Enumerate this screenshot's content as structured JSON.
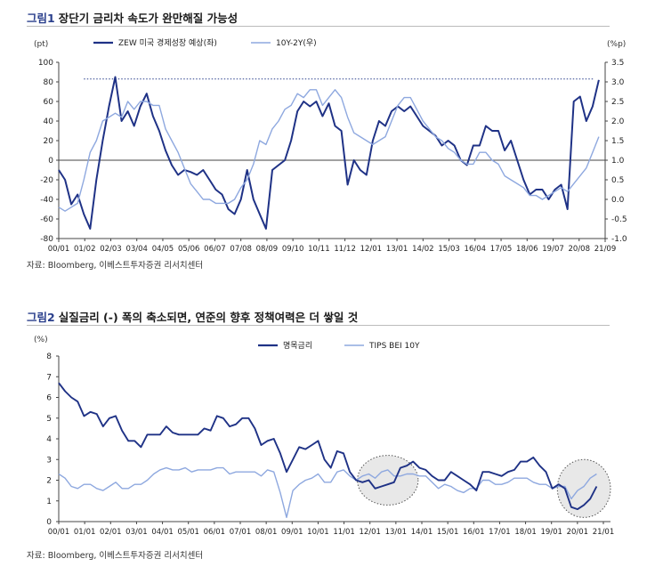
{
  "figure1": {
    "tag": "그림1",
    "title": "장단기 금리차 속도가 완만해질 가능성",
    "source": "자료: Bloomberg, 이베스트투자증권 리서치센터"
  },
  "figure2": {
    "tag": "그림2",
    "title": "실질금리 (-) 폭의 축소되면, 연준의 향후 정책여력은 더 쌓일 것",
    "source": "자료: Bloomberg, 이베스트투자증권 리서치센터"
  },
  "colors": {
    "dark": "#1f3286",
    "light": "#8ea8df",
    "ref": "#2a3f8c"
  },
  "chart_data": [
    {
      "type": "line",
      "left_unit": "(pt)",
      "right_unit": "(%p)",
      "x_ticks": [
        "00/01",
        "01/02",
        "02/03",
        "03/04",
        "04/05",
        "05/06",
        "06/07",
        "07/08",
        "08/09",
        "09/10",
        "10/11",
        "11/12",
        "12/01",
        "13/01",
        "14/02",
        "15/03",
        "16/04",
        "17/05",
        "18/06",
        "19/07",
        "20/08",
        "21/09"
      ],
      "y_left_ticks": [
        "100",
        "80",
        "60",
        "40",
        "20",
        "0",
        "-20",
        "-40",
        "-60",
        "-80"
      ],
      "y_right_ticks": [
        "3.5",
        "3.0",
        "2.5",
        "2.0",
        "1.5",
        "1.0",
        "0.5",
        "0.0",
        "-0.5",
        "-1.0"
      ],
      "ylim_left": [
        -80,
        100
      ],
      "ylim_right": [
        -1.0,
        3.5
      ],
      "x_range": [
        2000.0,
        2021.75
      ],
      "reference_line": {
        "axis": "left",
        "y": 83,
        "style": "dotted"
      },
      "legend": "top",
      "series": [
        {
          "name": "ZEW 미국 경제성장 예상(좌)",
          "axis": "left",
          "x": [
            2000.0,
            2000.25,
            2000.5,
            2000.75,
            2001.0,
            2001.25,
            2001.5,
            2001.75,
            2002.0,
            2002.25,
            2002.5,
            2002.75,
            2003.0,
            2003.25,
            2003.5,
            2003.75,
            2004.0,
            2004.25,
            2004.5,
            2004.75,
            2005.0,
            2005.25,
            2005.5,
            2005.75,
            2006.0,
            2006.25,
            2006.5,
            2006.75,
            2007.0,
            2007.25,
            2007.5,
            2007.75,
            2008.0,
            2008.25,
            2008.5,
            2008.75,
            2009.0,
            2009.25,
            2009.5,
            2009.75,
            2010.0,
            2010.25,
            2010.5,
            2010.75,
            2011.0,
            2011.25,
            2011.5,
            2011.75,
            2012.0,
            2012.25,
            2012.5,
            2012.75,
            2013.0,
            2013.25,
            2013.5,
            2013.75,
            2014.0,
            2014.25,
            2014.5,
            2014.75,
            2015.0,
            2015.25,
            2015.5,
            2015.75,
            2016.0,
            2016.25,
            2016.5,
            2016.75,
            2017.0,
            2017.25,
            2017.5,
            2017.75,
            2018.0,
            2018.25,
            2018.5,
            2018.75,
            2019.0,
            2019.25,
            2019.5,
            2019.75,
            2020.0,
            2020.25,
            2020.5,
            2020.75,
            2021.0,
            2021.25,
            2021.5
          ],
          "y": [
            -10,
            -20,
            -45,
            -35,
            -55,
            -70,
            -20,
            20,
            55,
            85,
            40,
            50,
            35,
            55,
            68,
            45,
            30,
            10,
            -5,
            -15,
            -10,
            -12,
            -15,
            -10,
            -20,
            -30,
            -35,
            -50,
            -55,
            -40,
            -10,
            -40,
            -55,
            -70,
            -10,
            -5,
            0,
            20,
            50,
            60,
            55,
            60,
            45,
            58,
            35,
            30,
            -25,
            0,
            -10,
            -15,
            20,
            40,
            35,
            50,
            55,
            50,
            55,
            45,
            35,
            30,
            25,
            15,
            20,
            15,
            0,
            -5,
            15,
            15,
            35,
            30,
            30,
            10,
            20,
            0,
            -20,
            -35,
            -30,
            -30,
            -40,
            -30,
            -25,
            -50,
            60,
            65,
            40,
            55,
            82
          ]
        },
        {
          "name": "10Y-2Y(우)",
          "axis": "right",
          "x": [
            2000.0,
            2000.25,
            2000.5,
            2000.75,
            2001.0,
            2001.25,
            2001.5,
            2001.75,
            2002.0,
            2002.25,
            2002.5,
            2002.75,
            2003.0,
            2003.25,
            2003.5,
            2003.75,
            2004.0,
            2004.25,
            2004.5,
            2004.75,
            2005.0,
            2005.25,
            2005.5,
            2005.75,
            2006.0,
            2006.25,
            2006.5,
            2006.75,
            2007.0,
            2007.25,
            2007.5,
            2007.75,
            2008.0,
            2008.25,
            2008.5,
            2008.75,
            2009.0,
            2009.25,
            2009.5,
            2009.75,
            2010.0,
            2010.25,
            2010.5,
            2010.75,
            2011.0,
            2011.25,
            2011.5,
            2011.75,
            2012.0,
            2012.25,
            2012.5,
            2012.75,
            2013.0,
            2013.25,
            2013.5,
            2013.75,
            2014.0,
            2014.25,
            2014.5,
            2014.75,
            2015.0,
            2015.25,
            2015.5,
            2015.75,
            2016.0,
            2016.25,
            2016.5,
            2016.75,
            2017.0,
            2017.25,
            2017.5,
            2017.75,
            2018.0,
            2018.25,
            2018.5,
            2018.75,
            2019.0,
            2019.25,
            2019.5,
            2019.75,
            2020.0,
            2020.25,
            2020.5,
            2020.75,
            2021.0,
            2021.25,
            2021.5
          ],
          "y": [
            -0.2,
            -0.3,
            -0.2,
            -0.1,
            0.5,
            1.2,
            1.5,
            2.0,
            2.1,
            2.2,
            2.1,
            2.5,
            2.3,
            2.5,
            2.5,
            2.4,
            2.4,
            1.8,
            1.5,
            1.2,
            0.8,
            0.4,
            0.2,
            0.0,
            0.0,
            -0.1,
            -0.1,
            -0.1,
            0.0,
            0.3,
            0.5,
            0.9,
            1.5,
            1.4,
            1.8,
            2.0,
            2.3,
            2.4,
            2.7,
            2.6,
            2.8,
            2.8,
            2.4,
            2.6,
            2.8,
            2.6,
            2.1,
            1.7,
            1.6,
            1.5,
            1.4,
            1.5,
            1.6,
            2.0,
            2.4,
            2.6,
            2.6,
            2.3,
            2.0,
            1.8,
            1.6,
            1.5,
            1.3,
            1.2,
            1.0,
            0.9,
            0.9,
            1.2,
            1.2,
            1.0,
            0.9,
            0.6,
            0.5,
            0.4,
            0.3,
            0.1,
            0.1,
            0.0,
            0.1,
            0.2,
            0.3,
            0.2,
            0.4,
            0.6,
            0.8,
            1.2,
            1.6
          ]
        }
      ]
    },
    {
      "type": "line",
      "left_unit": "(%)",
      "x_ticks": [
        "00/01",
        "01/01",
        "02/01",
        "03/01",
        "04/01",
        "05/01",
        "06/01",
        "07/01",
        "08/01",
        "09/01",
        "10/01",
        "11/01",
        "12/01",
        "13/01",
        "14/01",
        "15/01",
        "16/01",
        "17/01",
        "18/01",
        "19/01",
        "20/01",
        "21/01"
      ],
      "y_ticks": [
        "8",
        "7",
        "6",
        "5",
        "4",
        "3",
        "2",
        "1",
        "0"
      ],
      "ylim": [
        0,
        8
      ],
      "x_range": [
        2000.0,
        2021.8
      ],
      "legend": "top",
      "highlight_circles": [
        {
          "x_range": [
            2011.8,
            2014.2
          ],
          "y_range": [
            0.8,
            3.2
          ]
        },
        {
          "x_range": [
            2019.7,
            2021.8
          ],
          "y_range": [
            0.2,
            3.0
          ]
        }
      ],
      "series": [
        {
          "name": "명목금리",
          "x": [
            2000.0,
            2000.25,
            2000.5,
            2000.75,
            2001.0,
            2001.25,
            2001.5,
            2001.75,
            2002.0,
            2002.25,
            2002.5,
            2002.75,
            2003.0,
            2003.25,
            2003.5,
            2003.75,
            2004.0,
            2004.25,
            2004.5,
            2004.75,
            2005.0,
            2005.25,
            2005.5,
            2005.75,
            2006.0,
            2006.25,
            2006.5,
            2006.75,
            2007.0,
            2007.25,
            2007.5,
            2007.75,
            2008.0,
            2008.25,
            2008.5,
            2008.75,
            2009.0,
            2009.25,
            2009.5,
            2009.75,
            2010.0,
            2010.25,
            2010.5,
            2010.75,
            2011.0,
            2011.25,
            2011.5,
            2011.75,
            2012.0,
            2012.25,
            2012.5,
            2012.75,
            2013.0,
            2013.25,
            2013.5,
            2013.75,
            2014.0,
            2014.25,
            2014.5,
            2014.75,
            2015.0,
            2015.25,
            2015.5,
            2015.75,
            2016.0,
            2016.25,
            2016.5,
            2016.75,
            2017.0,
            2017.25,
            2017.5,
            2017.75,
            2018.0,
            2018.25,
            2018.5,
            2018.75,
            2019.0,
            2019.25,
            2019.5,
            2019.75,
            2020.0,
            2020.25,
            2020.5,
            2020.75,
            2021.0,
            2021.25
          ],
          "y": [
            6.7,
            6.3,
            6.0,
            5.8,
            5.1,
            5.3,
            5.2,
            4.6,
            5.0,
            5.1,
            4.4,
            3.9,
            3.9,
            3.6,
            4.2,
            4.2,
            4.2,
            4.6,
            4.3,
            4.2,
            4.2,
            4.2,
            4.2,
            4.5,
            4.4,
            5.1,
            5.0,
            4.6,
            4.7,
            5.0,
            5.0,
            4.5,
            3.7,
            3.9,
            4.0,
            3.3,
            2.4,
            3.0,
            3.6,
            3.5,
            3.7,
            3.9,
            3.0,
            2.6,
            3.4,
            3.3,
            2.4,
            2.0,
            1.9,
            2.0,
            1.6,
            1.7,
            1.8,
            1.9,
            2.6,
            2.7,
            2.9,
            2.6,
            2.5,
            2.2,
            2.0,
            2.0,
            2.4,
            2.2,
            2.0,
            1.8,
            1.5,
            2.4,
            2.4,
            2.3,
            2.2,
            2.4,
            2.5,
            2.9,
            2.9,
            3.1,
            2.7,
            2.4,
            1.6,
            1.8,
            1.6,
            0.7,
            0.6,
            0.8,
            1.1,
            1.7
          ]
        },
        {
          "name": "TIPS BEI 10Y",
          "x": [
            2000.0,
            2000.25,
            2000.5,
            2000.75,
            2001.0,
            2001.25,
            2001.5,
            2001.75,
            2002.0,
            2002.25,
            2002.5,
            2002.75,
            2003.0,
            2003.25,
            2003.5,
            2003.75,
            2004.0,
            2004.25,
            2004.5,
            2004.75,
            2005.0,
            2005.25,
            2005.5,
            2005.75,
            2006.0,
            2006.25,
            2006.5,
            2006.75,
            2007.0,
            2007.25,
            2007.5,
            2007.75,
            2008.0,
            2008.25,
            2008.5,
            2008.75,
            2009.0,
            2009.25,
            2009.5,
            2009.75,
            2010.0,
            2010.25,
            2010.5,
            2010.75,
            2011.0,
            2011.25,
            2011.5,
            2011.75,
            2012.0,
            2012.25,
            2012.5,
            2012.75,
            2013.0,
            2013.25,
            2013.5,
            2013.75,
            2014.0,
            2014.25,
            2014.5,
            2014.75,
            2015.0,
            2015.25,
            2015.5,
            2015.75,
            2016.0,
            2016.25,
            2016.5,
            2016.75,
            2017.0,
            2017.25,
            2017.5,
            2017.75,
            2018.0,
            2018.25,
            2018.5,
            2018.75,
            2019.0,
            2019.25,
            2019.5,
            2019.75,
            2020.0,
            2020.25,
            2020.5,
            2020.75,
            2021.0,
            2021.25
          ],
          "y": [
            2.3,
            2.1,
            1.7,
            1.6,
            1.8,
            1.8,
            1.6,
            1.5,
            1.7,
            1.9,
            1.6,
            1.6,
            1.8,
            1.8,
            2.0,
            2.3,
            2.5,
            2.6,
            2.5,
            2.5,
            2.6,
            2.4,
            2.5,
            2.5,
            2.5,
            2.6,
            2.6,
            2.3,
            2.4,
            2.4,
            2.4,
            2.4,
            2.2,
            2.5,
            2.4,
            1.4,
            0.2,
            1.5,
            1.8,
            2.0,
            2.1,
            2.3,
            1.9,
            1.9,
            2.4,
            2.5,
            2.2,
            2.0,
            2.2,
            2.3,
            2.1,
            2.4,
            2.5,
            2.2,
            2.2,
            2.3,
            2.3,
            2.2,
            2.2,
            1.9,
            1.6,
            1.8,
            1.7,
            1.5,
            1.4,
            1.6,
            1.6,
            2.0,
            2.0,
            1.8,
            1.8,
            1.9,
            2.1,
            2.1,
            2.1,
            1.9,
            1.8,
            1.8,
            1.6,
            1.7,
            1.7,
            1.1,
            1.5,
            1.7,
            2.1,
            2.3
          ]
        }
      ]
    }
  ]
}
